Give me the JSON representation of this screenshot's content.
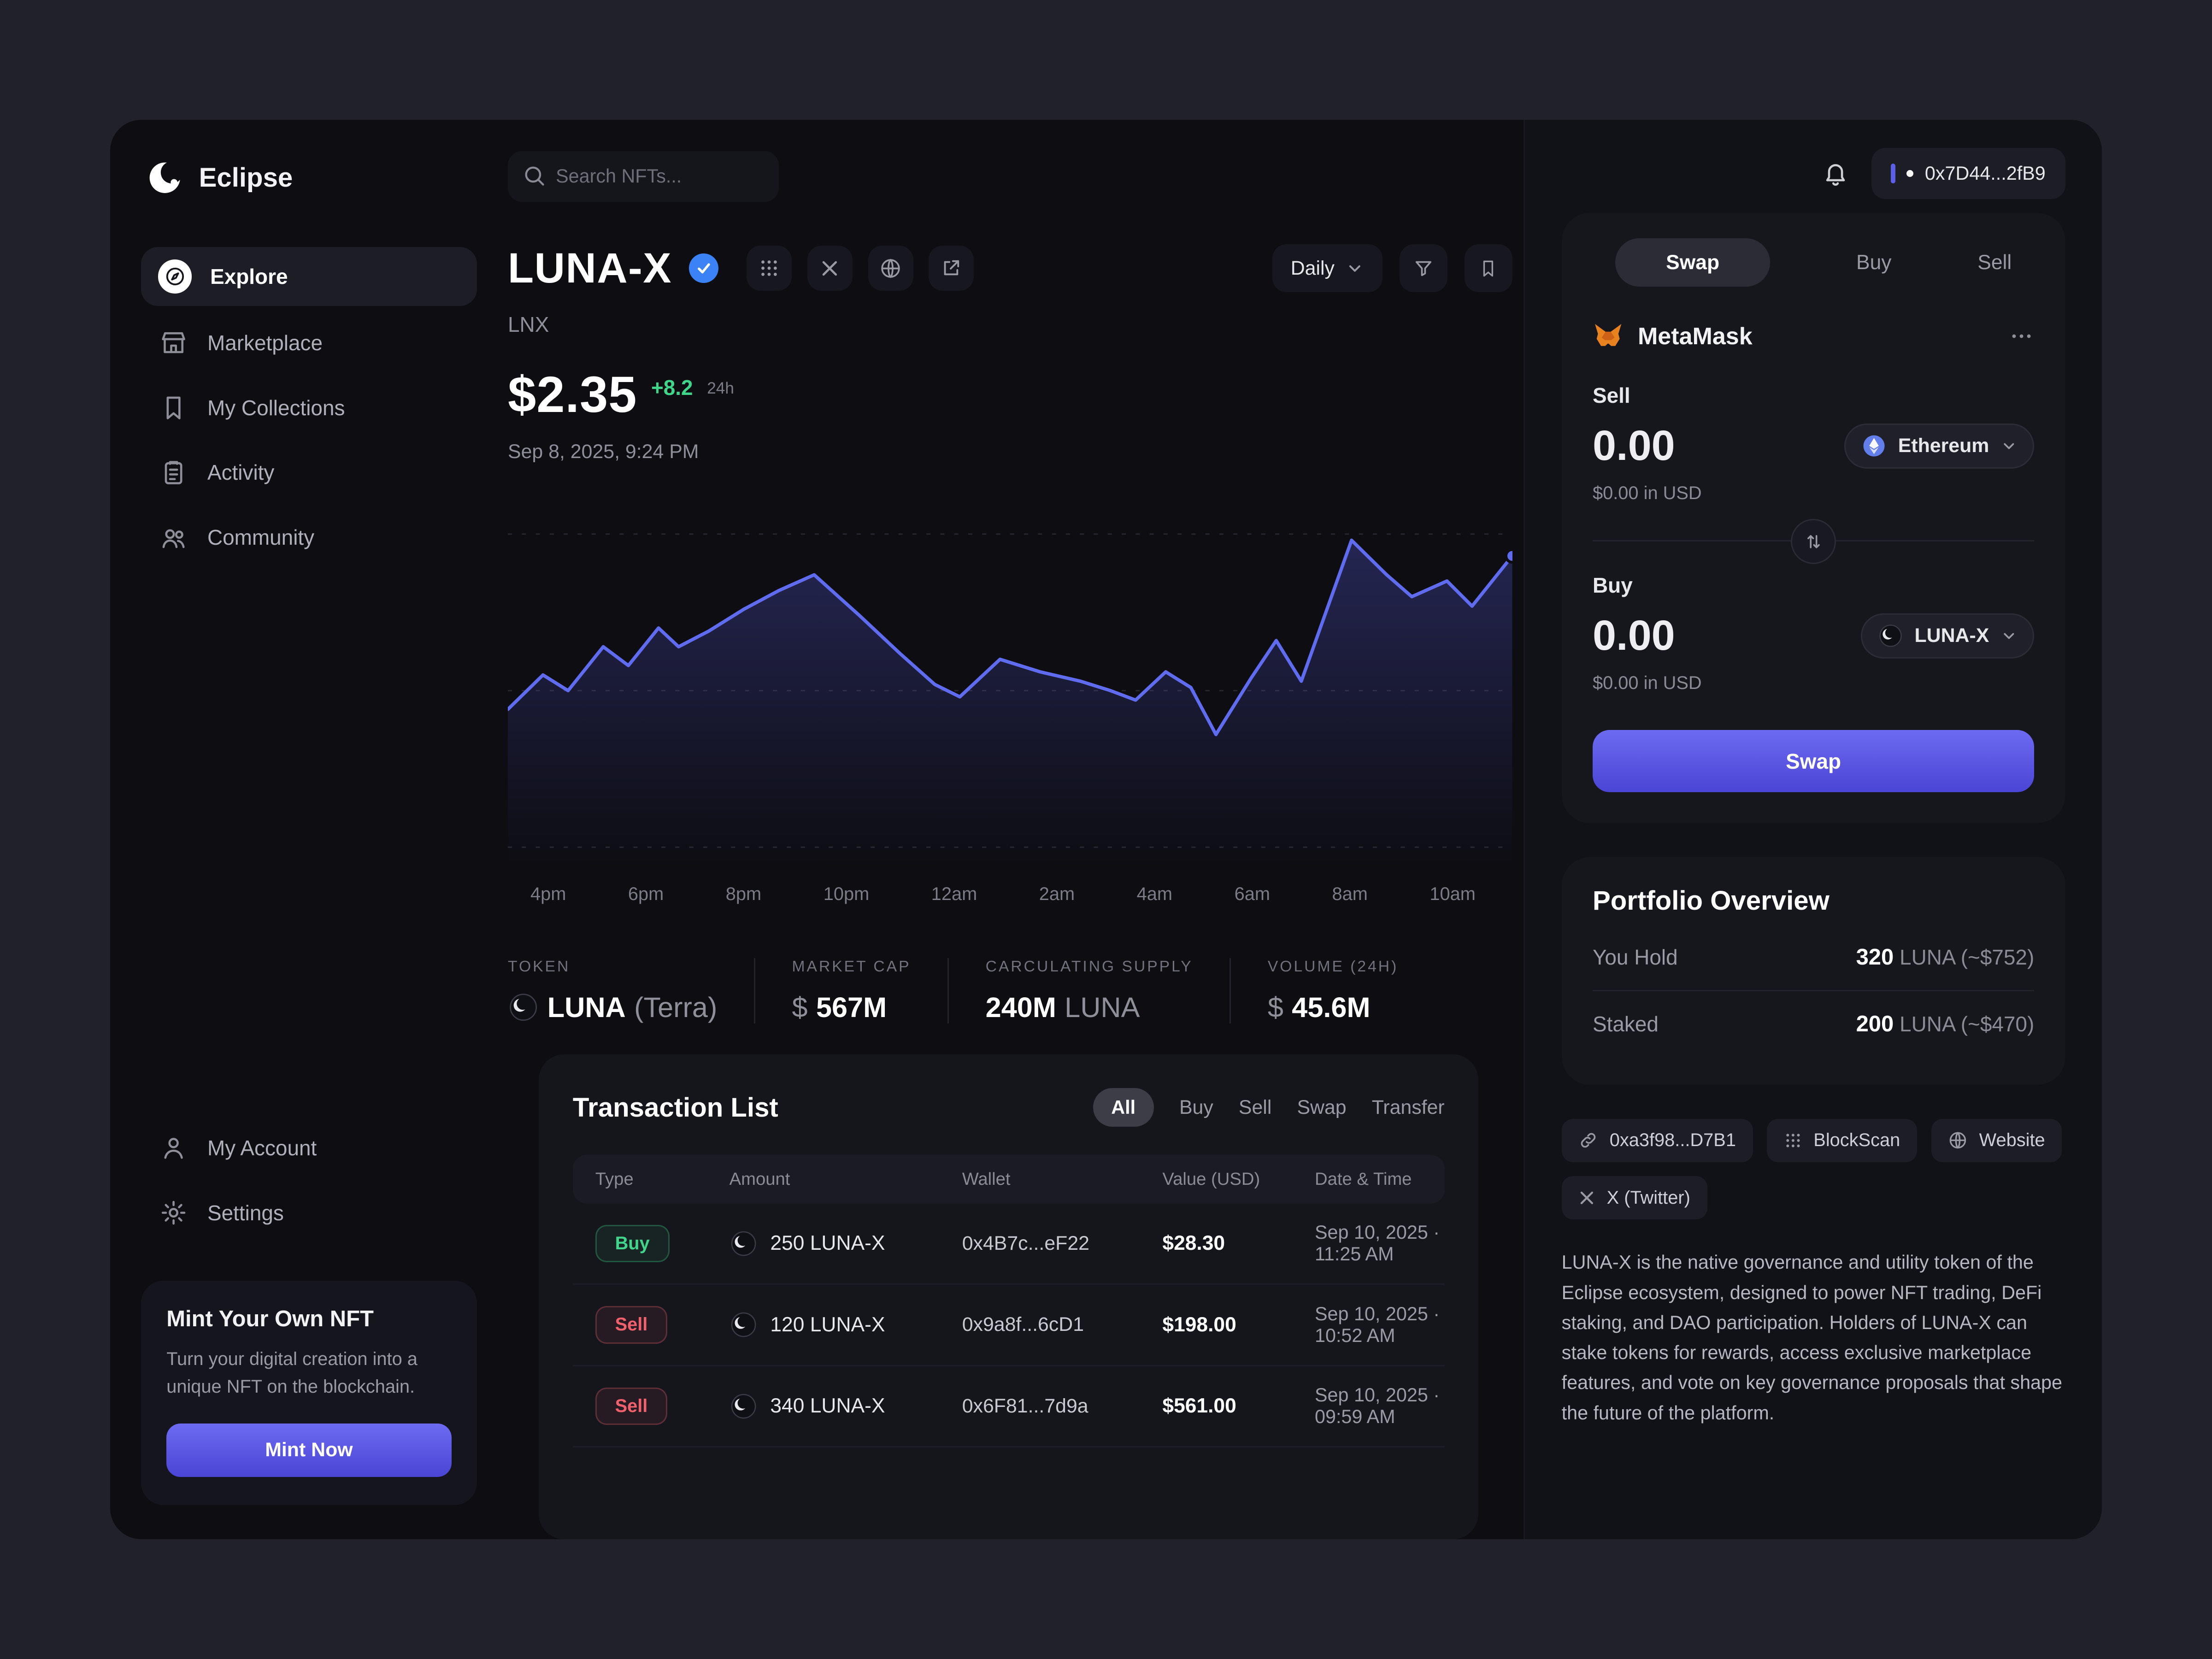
{
  "header": {
    "search_placeholder": "Search NFTs...",
    "wallet_address": "0x7D44...2fB9"
  },
  "sidebar": {
    "brand": "Eclipse",
    "items": [
      {
        "label": "Explore"
      },
      {
        "label": "Marketplace"
      },
      {
        "label": "My Collections"
      },
      {
        "label": "Activity"
      },
      {
        "label": "Community"
      }
    ],
    "account_items": [
      {
        "label": "My Account"
      },
      {
        "label": "Settings"
      }
    ],
    "mint_card": {
      "title": "Mint Your Own NFT",
      "description": "Turn your digital creation into a unique NFT on the blockchain.",
      "button_label": "Mint Now"
    }
  },
  "token": {
    "name": "LUNA-X",
    "symbol": "LNX",
    "price": "$2.35",
    "change": "+8.2",
    "change_period": "24h",
    "timestamp": "Sep 8, 2025, 9:24 PM",
    "interval": "Daily"
  },
  "chart_data": {
    "type": "area",
    "title": "LUNA-X price (Daily)",
    "line_color": "#5f6cf0",
    "x_labels": [
      "4pm",
      "6pm",
      "8pm",
      "10pm",
      "12am",
      "2am",
      "4am",
      "6am",
      "8am",
      "10am"
    ],
    "points": [
      [
        0.0,
        0.44
      ],
      [
        0.035,
        0.55
      ],
      [
        0.06,
        0.5
      ],
      [
        0.095,
        0.64
      ],
      [
        0.12,
        0.58
      ],
      [
        0.15,
        0.7
      ],
      [
        0.17,
        0.64
      ],
      [
        0.2,
        0.69
      ],
      [
        0.235,
        0.76
      ],
      [
        0.27,
        0.82
      ],
      [
        0.305,
        0.87
      ],
      [
        0.35,
        0.74
      ],
      [
        0.39,
        0.62
      ],
      [
        0.425,
        0.52
      ],
      [
        0.45,
        0.48
      ],
      [
        0.49,
        0.6
      ],
      [
        0.53,
        0.56
      ],
      [
        0.57,
        0.53
      ],
      [
        0.6,
        0.5
      ],
      [
        0.625,
        0.47
      ],
      [
        0.655,
        0.56
      ],
      [
        0.68,
        0.51
      ],
      [
        0.705,
        0.36
      ],
      [
        0.74,
        0.54
      ],
      [
        0.765,
        0.66
      ],
      [
        0.79,
        0.53
      ],
      [
        0.84,
        0.98
      ],
      [
        0.875,
        0.87
      ],
      [
        0.9,
        0.8
      ],
      [
        0.935,
        0.85
      ],
      [
        0.96,
        0.77
      ],
      [
        1.0,
        0.93
      ]
    ]
  },
  "stats": [
    {
      "label": "TOKEN",
      "prefix": "",
      "value": "LUNA",
      "suffix": "(Terra)"
    },
    {
      "label": "MARKET CAP",
      "prefix": "$",
      "value": "567M",
      "suffix": ""
    },
    {
      "label": "CARCULATING SUPPLY",
      "prefix": "",
      "value": "240M",
      "suffix": "LUNA"
    },
    {
      "label": "VOLUME (24H)",
      "prefix": "$",
      "value": "45.6M",
      "suffix": ""
    }
  ],
  "transactions": {
    "title": "Transaction List",
    "filters": [
      "All",
      "Buy",
      "Sell",
      "Swap",
      "Transfer"
    ],
    "active_filter": "All",
    "columns": [
      "Type",
      "Amount",
      "Wallet",
      "Value (USD)",
      "Date & Time"
    ],
    "rows": [
      {
        "type": "Buy",
        "amount": "250 LUNA-X",
        "wallet": "0x4B7c...eF22",
        "value": "$28.30",
        "date": "Sep 10, 2025 · 11:25 AM"
      },
      {
        "type": "Sell",
        "amount": "120 LUNA-X",
        "wallet": "0x9a8f...6cD1",
        "value": "$198.00",
        "date": "Sep 10, 2025 · 10:52 AM"
      },
      {
        "type": "Sell",
        "amount": "340 LUNA-X",
        "wallet": "0x6F81...7d9a",
        "value": "$561.00",
        "date": "Sep 10, 2025 · 09:59 AM"
      }
    ]
  },
  "swap_panel": {
    "tabs": [
      "Swap",
      "Buy",
      "Sell"
    ],
    "active_tab": "Swap",
    "provider": "MetaMask",
    "sell": {
      "label": "Sell",
      "amount": "0.00",
      "token": "Ethereum",
      "usd": "$0.00 in USD"
    },
    "buy": {
      "label": "Buy",
      "amount": "0.00",
      "token": "LUNA-X",
      "usd": "$0.00 in USD"
    },
    "button_label": "Swap"
  },
  "portfolio": {
    "title": "Portfolio Overview",
    "rows": [
      {
        "label": "You Hold",
        "value": "320",
        "detail": "LUNA (~$752)"
      },
      {
        "label": "Staked",
        "value": "200",
        "detail": "LUNA (~$470)"
      }
    ]
  },
  "links": [
    {
      "label": "0xa3f98...D7B1"
    },
    {
      "label": "BlockScan"
    },
    {
      "label": "Website"
    },
    {
      "label": "X (Twitter)"
    }
  ],
  "about": "LUNA-X is the native governance and utility token of the Eclipse ecosystem, designed to power NFT trading, DeFi staking, and DAO participation. Holders of LUNA-X can stake tokens for rewards, access exclusive marketplace features, and vote on key governance proposals that shape the future of the platform."
}
